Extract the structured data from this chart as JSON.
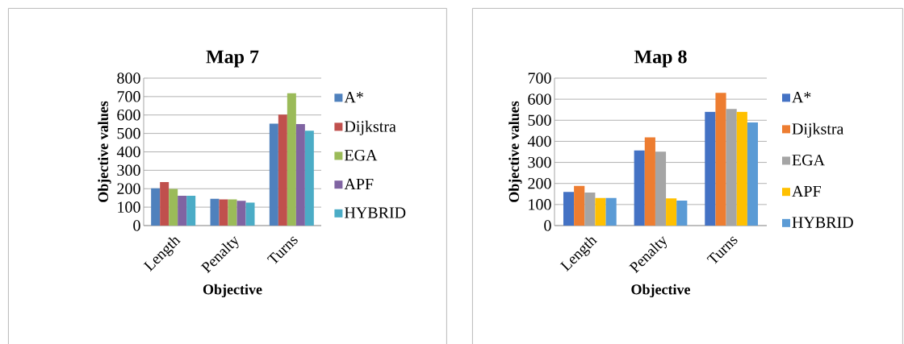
{
  "chart_data": [
    {
      "type": "bar",
      "title": "Map 7",
      "xlabel": "Objective",
      "ylabel": "Objective values",
      "categories": [
        "Length",
        "Penalty",
        "Turns"
      ],
      "ylim": [
        0,
        800
      ],
      "yticks": [
        0,
        100,
        200,
        300,
        400,
        500,
        600,
        700,
        800
      ],
      "grid": "y",
      "legend": "right",
      "series": [
        {
          "name": "A*",
          "color": "#4f81bd",
          "values": [
            202,
            145,
            553
          ]
        },
        {
          "name": "Dijkstra",
          "color": "#c0504d",
          "values": [
            236,
            142,
            602
          ]
        },
        {
          "name": "EGA",
          "color": "#9bbb59",
          "values": [
            199,
            142,
            719
          ]
        },
        {
          "name": "APF",
          "color": "#8064a2",
          "values": [
            162,
            134,
            551
          ]
        },
        {
          "name": "HYBRID",
          "color": "#4bacc6",
          "values": [
            162,
            124,
            515
          ]
        }
      ]
    },
    {
      "type": "bar",
      "title": "Map 8",
      "xlabel": "Objective",
      "ylabel": "Objective values",
      "categories": [
        "Length",
        "Penalty",
        "Turns"
      ],
      "ylim": [
        0,
        700
      ],
      "yticks": [
        0,
        100,
        200,
        300,
        400,
        500,
        600,
        700
      ],
      "grid": "y",
      "legend": "right",
      "series": [
        {
          "name": "A*",
          "color": "#4472c4",
          "values": [
            160,
            357,
            540
          ]
        },
        {
          "name": "Dijkstra",
          "color": "#ed7d31",
          "values": [
            188,
            419,
            630
          ]
        },
        {
          "name": "EGA",
          "color": "#a5a5a5",
          "values": [
            157,
            351,
            554
          ]
        },
        {
          "name": "APF",
          "color": "#ffc000",
          "values": [
            131,
            129,
            540
          ]
        },
        {
          "name": "HYBRID",
          "color": "#5b9bd5",
          "values": [
            131,
            119,
            490
          ]
        }
      ]
    }
  ]
}
